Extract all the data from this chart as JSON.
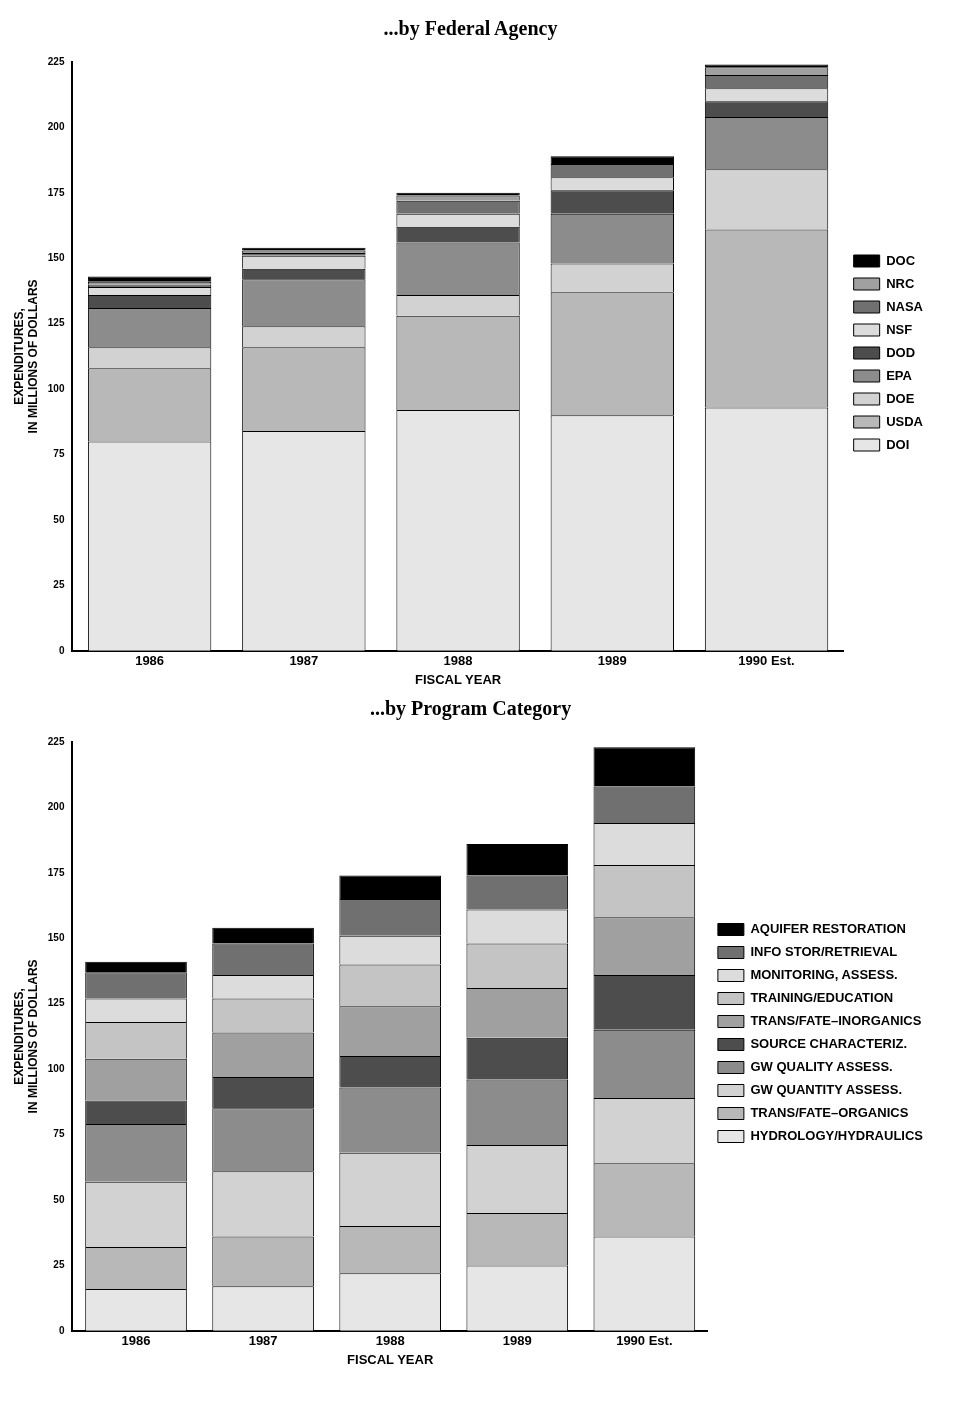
{
  "chart_data": [
    {
      "type": "bar",
      "title": "...by Federal Agency",
      "xlabel": "FISCAL YEAR",
      "ylabel": "EXPENDITURES,\nIN MILLIONS OF DOLLARS",
      "categories": [
        "1986",
        "1987",
        "1988",
        "1989",
        "1990 Est."
      ],
      "stacked": true,
      "ylim": [
        0,
        225
      ],
      "yticks": [
        0,
        25,
        50,
        75,
        100,
        125,
        150,
        175,
        200,
        225
      ],
      "grid": false,
      "legend": "right",
      "series": [
        {
          "name": "DOI",
          "color": "#e6e6e6",
          "values": [
            80,
            84,
            92,
            90,
            93
          ]
        },
        {
          "name": "USDA",
          "color": "#b8b8b8",
          "values": [
            28,
            32,
            36,
            47,
            68
          ]
        },
        {
          "name": "DOE",
          "color": "#d2d2d2",
          "values": [
            8,
            8,
            8,
            11,
            23
          ]
        },
        {
          "name": "EPA",
          "color": "#8c8c8c",
          "values": [
            15,
            18,
            20,
            19,
            20
          ]
        },
        {
          "name": "DOD",
          "color": "#4d4d4d",
          "values": [
            5,
            4,
            6,
            9,
            6
          ]
        },
        {
          "name": "NSF",
          "color": "#dcdcdc",
          "values": [
            3,
            5,
            5,
            5,
            5
          ]
        },
        {
          "name": "NASA",
          "color": "#707070",
          "values": [
            1,
            1,
            5,
            5,
            5
          ]
        },
        {
          "name": "NRC",
          "color": "#a0a0a0",
          "values": [
            1,
            1,
            2,
            0,
            3
          ]
        },
        {
          "name": "DOC",
          "color": "#000000",
          "values": [
            2,
            1,
            1,
            3,
            1
          ]
        }
      ]
    },
    {
      "type": "bar",
      "title": "...by Program Category",
      "xlabel": "FISCAL YEAR",
      "ylabel": "EXPENDITURES,\nIN MILLIONS OF DOLLARS",
      "categories": [
        "1986",
        "1987",
        "1988",
        "1989",
        "1990 Est."
      ],
      "stacked": true,
      "ylim": [
        0,
        225
      ],
      "yticks": [
        0,
        25,
        50,
        75,
        100,
        125,
        150,
        175,
        200,
        225
      ],
      "grid": false,
      "legend": "right",
      "series": [
        {
          "name": "HYDROLOGY/HYDRAULICS",
          "color": "#e6e6e6",
          "values": [
            16,
            17,
            22,
            25,
            36
          ]
        },
        {
          "name": "TRANS/FATE–ORGANICS",
          "color": "#b8b8b8",
          "values": [
            16,
            19,
            18,
            20,
            28
          ]
        },
        {
          "name": "GW QUANTITY ASSESS.",
          "color": "#d2d2d2",
          "values": [
            25,
            25,
            28,
            26,
            25
          ]
        },
        {
          "name": "GW QUALITY ASSESS.",
          "color": "#8c8c8c",
          "values": [
            22,
            24,
            25,
            25,
            26
          ]
        },
        {
          "name": "SOURCE CHARACTERIZ.",
          "color": "#4d4d4d",
          "values": [
            9,
            12,
            12,
            16,
            21
          ]
        },
        {
          "name": "TRANS/FATE–INORGANICS",
          "color": "#a0a0a0",
          "values": [
            16,
            17,
            19,
            19,
            22
          ]
        },
        {
          "name": "TRAINING/EDUCATION",
          "color": "#c4c4c4",
          "values": [
            14,
            13,
            16,
            17,
            20
          ]
        },
        {
          "name": "MONITORING, ASSESS.",
          "color": "#dcdcdc",
          "values": [
            9,
            9,
            11,
            13,
            16
          ]
        },
        {
          "name": "INFO STOR/RETRIEVAL",
          "color": "#707070",
          "values": [
            10,
            12,
            14,
            13,
            14
          ]
        },
        {
          "name": "AQUIFER RESTORATION",
          "color": "#000000",
          "values": [
            4,
            6,
            9,
            12,
            15
          ]
        }
      ]
    }
  ]
}
